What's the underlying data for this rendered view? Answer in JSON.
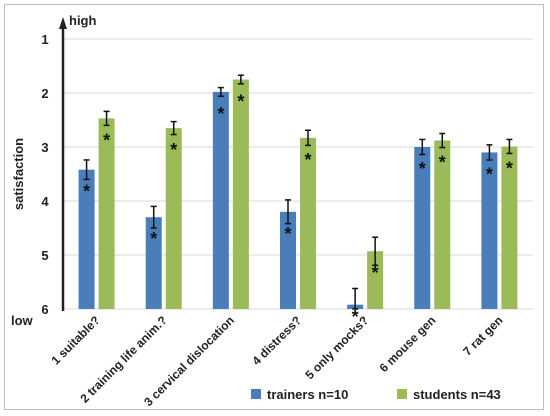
{
  "chart_data": {
    "type": "bar",
    "ylabel": "satisfaction",
    "ylim": [
      1,
      6
    ],
    "y_inverted": true,
    "yticks": [
      "1",
      "2",
      "3",
      "4",
      "5",
      "6"
    ],
    "scale_top_label": "high",
    "scale_bottom_label": "low",
    "categories": [
      "1 suitable?",
      "2 training life anim.?",
      "3 cervical dislocation",
      "4 distress?",
      "5 only mocks?",
      "6 mouse gen",
      "7 rat gen"
    ],
    "series": [
      {
        "name": "trainers n=10",
        "color": "#4a7ebb",
        "values": [
          3.42,
          4.3,
          1.98,
          4.2,
          5.92,
          3.0,
          3.1
        ],
        "errors": [
          0.18,
          0.2,
          0.08,
          0.22,
          0.3,
          0.14,
          0.14
        ],
        "significant": [
          true,
          true,
          true,
          true,
          true,
          true,
          true
        ]
      },
      {
        "name": "students n=43",
        "color": "#9bbb59",
        "values": [
          2.47,
          2.65,
          1.75,
          2.83,
          4.93,
          2.88,
          2.99
        ],
        "errors": [
          0.13,
          0.12,
          0.08,
          0.14,
          0.26,
          0.13,
          0.13
        ],
        "significant": [
          true,
          true,
          true,
          true,
          true,
          true,
          true
        ]
      }
    ],
    "significance_marker": "*",
    "grid": true,
    "legend_position": "bottom-right"
  }
}
